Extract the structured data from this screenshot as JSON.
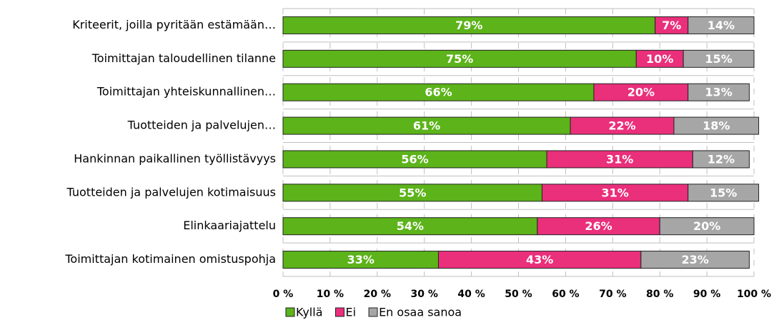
{
  "chart_data": {
    "type": "stacked-barh",
    "categories": [
      "Kriteerit, joilla pyritään estämään…",
      "Toimittajan taloudellinen tilanne",
      "Toimittajan yhteiskunnallinen…",
      "Tuotteiden ja palvelujen…",
      "Hankinnan paikallinen työllistävyys",
      "Tuotteiden ja palvelujen kotimaisuus",
      "Elinkaariajattelu",
      "Toimittajan kotimainen omistuspohja"
    ],
    "series": [
      {
        "name": "Kyllä",
        "color": "#5cb31a",
        "values": [
          79,
          75,
          66,
          61,
          56,
          55,
          54,
          33
        ],
        "value_labels": [
          "79%",
          "75%",
          "66%",
          "61%",
          "56%",
          "55%",
          "54%",
          "33%"
        ]
      },
      {
        "name": "Ei",
        "color": "#ea2f7b",
        "values": [
          7,
          10,
          20,
          22,
          31,
          31,
          26,
          43
        ],
        "value_labels": [
          "7%",
          "10%",
          "20%",
          "22%",
          "31%",
          "31%",
          "26%",
          "43%"
        ]
      },
      {
        "name": "En osaa sanoa",
        "color": "#a6a6a6",
        "values": [
          14,
          15,
          13,
          18,
          12,
          15,
          20,
          23
        ],
        "value_labels": [
          "14%",
          "15%",
          "13%",
          "18%",
          "12%",
          "15%",
          "20%",
          "23%"
        ]
      }
    ],
    "xlim": [
      0,
      100
    ],
    "xticks": [
      {
        "value": 0,
        "label": "0 %"
      },
      {
        "value": 10,
        "label": "10 %"
      },
      {
        "value": 20,
        "label": "20 %"
      },
      {
        "value": 30,
        "label": "30 %"
      },
      {
        "value": 40,
        "label": "40 %"
      },
      {
        "value": 50,
        "label": "50 %"
      },
      {
        "value": 60,
        "label": "60 %"
      },
      {
        "value": 70,
        "label": "70 %"
      },
      {
        "value": 80,
        "label": "80 %"
      },
      {
        "value": 90,
        "label": "90 %"
      },
      {
        "value": 100,
        "label": "100 %"
      }
    ],
    "grid": true,
    "legend": "bottom"
  }
}
